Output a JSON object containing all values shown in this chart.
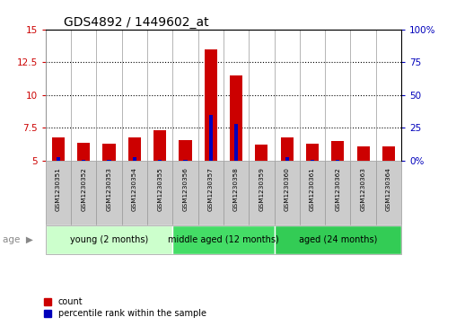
{
  "title": "GDS4892 / 1449602_at",
  "samples": [
    "GSM1230351",
    "GSM1230352",
    "GSM1230353",
    "GSM1230354",
    "GSM1230355",
    "GSM1230356",
    "GSM1230357",
    "GSM1230358",
    "GSM1230359",
    "GSM1230360",
    "GSM1230361",
    "GSM1230362",
    "GSM1230363",
    "GSM1230364"
  ],
  "count_values": [
    6.8,
    6.4,
    6.3,
    6.8,
    7.3,
    6.6,
    13.5,
    11.5,
    6.2,
    6.8,
    6.3,
    6.5,
    6.1,
    6.1
  ],
  "percentile_values": [
    5.3,
    5.1,
    5.05,
    5.3,
    5.1,
    5.05,
    8.5,
    7.8,
    5.0,
    5.25,
    5.1,
    5.1,
    5.0,
    5.0
  ],
  "baseline": 5.0,
  "ylim_left": [
    5.0,
    15.0
  ],
  "ylim_right": [
    0,
    100
  ],
  "yticks_left": [
    5.0,
    7.5,
    10.0,
    12.5,
    15.0
  ],
  "yticks_right": [
    0,
    25,
    50,
    75,
    100
  ],
  "ytick_labels_left": [
    "5",
    "7.5",
    "10",
    "12.5",
    "15"
  ],
  "ytick_labels_right": [
    "0%",
    "25",
    "50",
    "75",
    "100%"
  ],
  "groups": [
    {
      "label": "young (2 months)",
      "start": 0,
      "end": 5,
      "color": "#CCFFCC"
    },
    {
      "label": "middle aged (12 months)",
      "start": 5,
      "end": 9,
      "color": "#44DD66"
    },
    {
      "label": "aged (24 months)",
      "start": 9,
      "end": 14,
      "color": "#33CC55"
    }
  ],
  "bar_color_red": "#CC0000",
  "bar_color_blue": "#0000BB",
  "bar_width": 0.5,
  "bg_color_plot": "#FFFFFF",
  "bg_color_fig": "#FFFFFF",
  "tick_color_left": "#CC0000",
  "tick_color_right": "#0000BB",
  "grid_color": "#000000",
  "cell_sep_color": "#999999",
  "cell_bg": "#CCCCCC",
  "legend_items": [
    {
      "label": "count",
      "color": "#CC0000"
    },
    {
      "label": "percentile rank within the sample",
      "color": "#0000BB"
    }
  ],
  "age_label": "age"
}
